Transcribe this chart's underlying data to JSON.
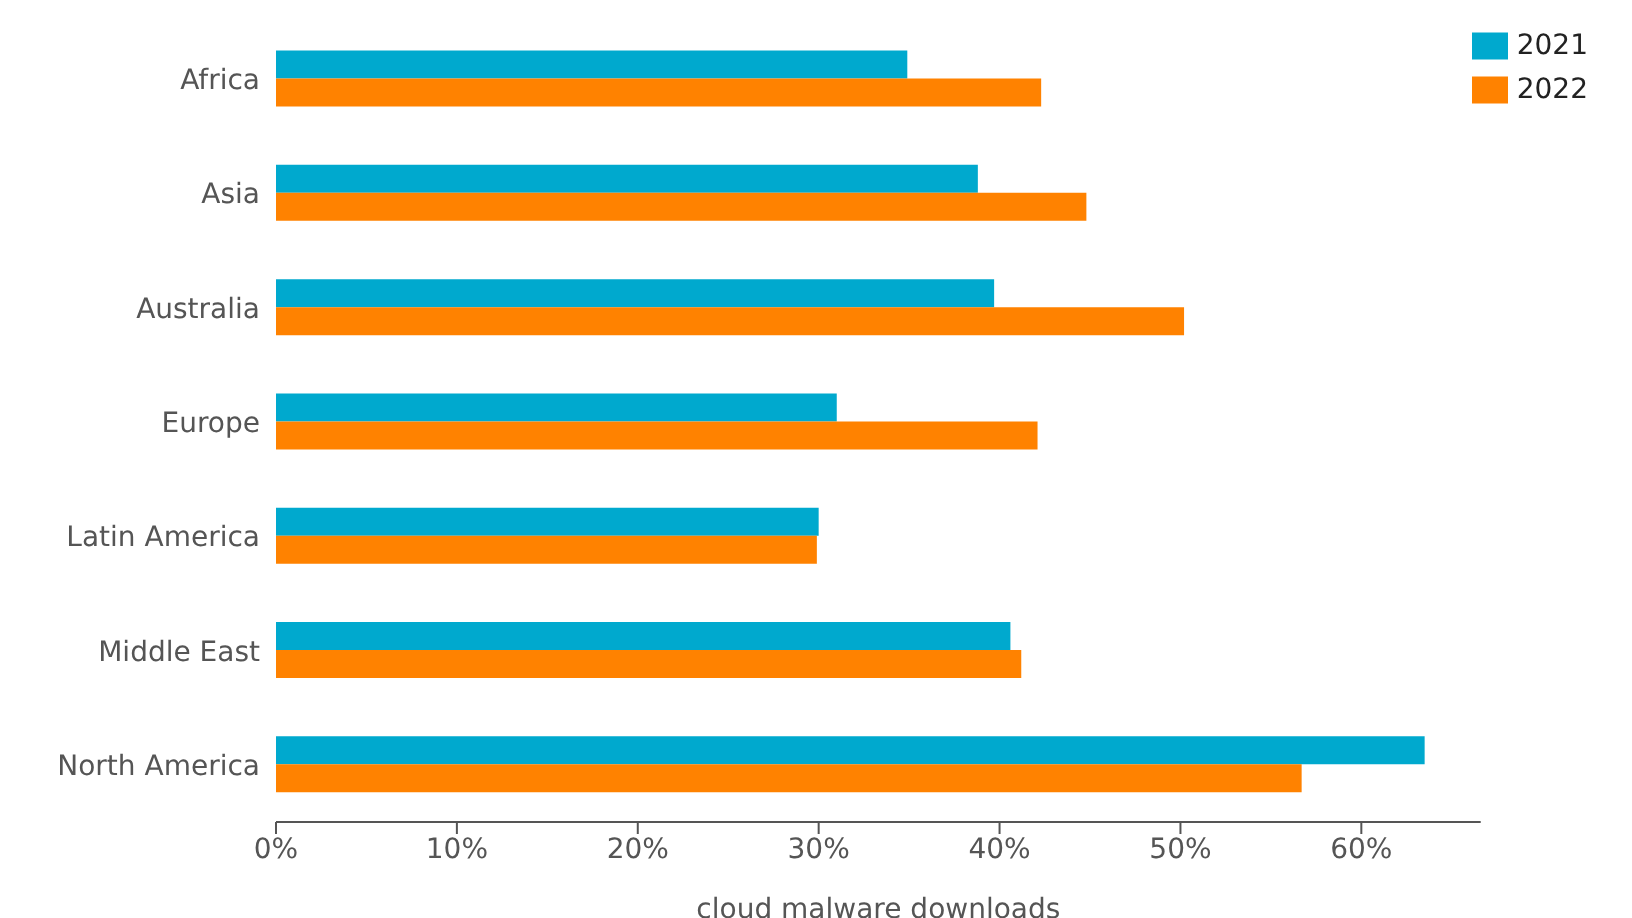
{
  "chart_data": {
    "type": "bar",
    "orientation": "horizontal",
    "xlabel": "cloud malware downloads",
    "categories": [
      "Africa",
      "Asia",
      "Australia",
      "Europe",
      "Latin America",
      "Middle East",
      "North America"
    ],
    "series": [
      {
        "name": "2021",
        "color": "#00a9ce",
        "values": [
          34.9,
          38.8,
          39.7,
          31.0,
          30.0,
          40.6,
          63.5
        ]
      },
      {
        "name": "2022",
        "color": "#ff8200",
        "values": [
          42.3,
          44.8,
          50.2,
          42.1,
          29.9,
          41.2,
          56.7
        ]
      }
    ],
    "xlim": [
      0,
      66.6
    ],
    "xticks": [
      {
        "value": 0,
        "label": "0%"
      },
      {
        "value": 10,
        "label": "10%"
      },
      {
        "value": 20,
        "label": "20%"
      },
      {
        "value": 30,
        "label": "30%"
      },
      {
        "value": 40,
        "label": "40%"
      },
      {
        "value": 50,
        "label": "50%"
      },
      {
        "value": 60,
        "label": "60%"
      }
    ],
    "grid": false,
    "legend": "top right"
  }
}
